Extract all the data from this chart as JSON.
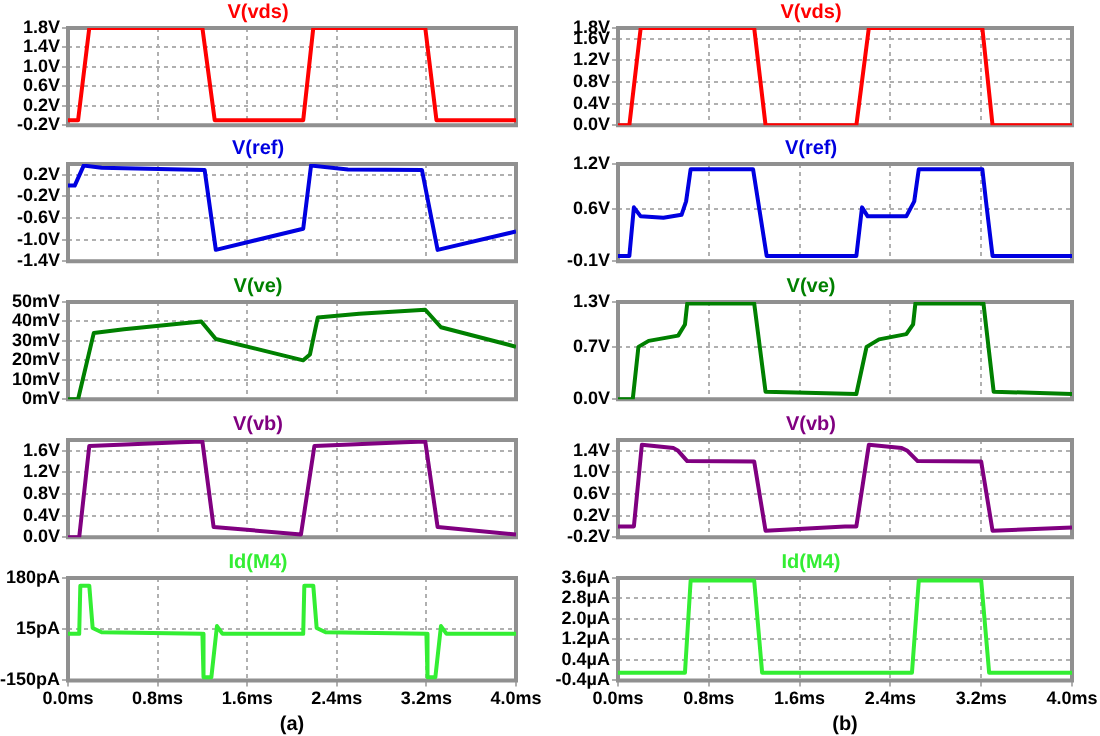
{
  "chart_data": [
    {
      "type": "line",
      "title": "V(vds)",
      "tick_labels": "y",
      "grid": true,
      "marker": "none",
      "line_style": "solid",
      "xlim": [
        0,
        4
      ],
      "xticks": [
        0,
        0.8,
        1.6,
        2.4,
        3.2,
        4
      ],
      "ylim": [
        -0.2,
        1.8
      ],
      "yticks": [
        {
          "value": -0.2,
          "label": "-0.2V"
        },
        {
          "value": 0.2,
          "label": "0.2V"
        },
        {
          "value": 0.6,
          "label": "0.6V"
        },
        {
          "value": 1.0,
          "label": "1.0V"
        },
        {
          "value": 1.4,
          "label": "1.4V"
        },
        {
          "value": 1.8,
          "label": "1.8V"
        }
      ],
      "x": [
        0,
        0.09,
        0.19,
        1.2,
        1.31,
        2.1,
        2.19,
        3.19,
        3.29,
        4
      ],
      "series": [
        {
          "color": "#ff0000",
          "values": [
            -0.1,
            -0.1,
            1.8,
            1.8,
            -0.1,
            -0.1,
            1.8,
            1.8,
            -0.1,
            -0.1
          ]
        }
      ]
    },
    {
      "type": "line",
      "title": "V(vds)",
      "tick_labels": "y",
      "grid": true,
      "marker": "none",
      "line_style": "solid",
      "xlim": [
        0,
        4
      ],
      "xticks": [
        0,
        0.8,
        1.6,
        2.4,
        3.2,
        4
      ],
      "ylim": [
        0,
        1.8
      ],
      "yticks": [
        {
          "value": 0,
          "label": "0.0V"
        },
        {
          "value": 0.4,
          "label": "0.4V"
        },
        {
          "value": 0.8,
          "label": "0.8V"
        },
        {
          "value": 1.2,
          "label": "1.2V"
        },
        {
          "value": 1.6,
          "label": "1.6V"
        },
        {
          "value": 1.8,
          "label": "1.8V"
        }
      ],
      "x": [
        0,
        0.1,
        0.2,
        1.2,
        1.3,
        2.1,
        2.21,
        3.21,
        3.3,
        4
      ],
      "series": [
        {
          "color": "#ff0000",
          "values": [
            0,
            0,
            1.8,
            1.8,
            0,
            0,
            1.8,
            1.8,
            0,
            0
          ]
        }
      ]
    },
    {
      "type": "line",
      "title": "V(ref)",
      "tick_labels": "y",
      "grid": true,
      "marker": "none",
      "line_style": "solid",
      "xlim": [
        0,
        4
      ],
      "xticks": [
        0,
        0.8,
        1.6,
        2.4,
        3.2,
        4
      ],
      "ylim": [
        -1.4,
        0.4
      ],
      "yticks": [
        {
          "value": -1.4,
          "label": "-1.4V"
        },
        {
          "value": -1.0,
          "label": "-1.0V"
        },
        {
          "value": -0.6,
          "label": "-0.6V"
        },
        {
          "value": -0.2,
          "label": "-0.2V"
        },
        {
          "value": 0.2,
          "label": "0.2V"
        }
      ],
      "x": [
        0,
        0.06,
        0.14,
        0.3,
        1.22,
        1.32,
        2.1,
        2.17,
        2.5,
        3.16,
        3.3,
        4
      ],
      "series": [
        {
          "color": "#0000e0",
          "values": [
            0,
            0,
            0.37,
            0.33,
            0.29,
            -1.19,
            -0.8,
            0.37,
            0.3,
            0.29,
            -1.19,
            -0.85
          ]
        }
      ]
    },
    {
      "type": "line",
      "title": "V(ref)",
      "tick_labels": "y",
      "grid": true,
      "marker": "none",
      "line_style": "solid",
      "xlim": [
        0,
        4
      ],
      "xticks": [
        0,
        0.8,
        1.6,
        2.4,
        3.2,
        4
      ],
      "ylim": [
        -0.1,
        1.2
      ],
      "yticks": [
        {
          "value": -0.1,
          "label": "-0.1V"
        },
        {
          "value": 0.6,
          "label": "0.6V"
        },
        {
          "value": 1.2,
          "label": "1.2V"
        }
      ],
      "x": [
        0,
        0.1,
        0.14,
        0.2,
        0.4,
        0.56,
        0.6,
        0.64,
        1.19,
        1.31,
        2.1,
        2.15,
        2.2,
        2.54,
        2.61,
        2.65,
        3.21,
        3.25,
        3.3,
        4
      ],
      "series": [
        {
          "color": "#0000e0",
          "values": [
            -0.03,
            -0.03,
            0.62,
            0.5,
            0.48,
            0.52,
            0.7,
            1.13,
            1.13,
            -0.03,
            -0.03,
            0.62,
            0.5,
            0.5,
            0.7,
            1.13,
            1.13,
            0.6,
            -0.03,
            -0.03
          ]
        }
      ]
    },
    {
      "type": "line",
      "title": "V(ve)",
      "tick_labels": "y",
      "grid": true,
      "marker": "none",
      "line_style": "solid",
      "xlim": [
        0,
        4
      ],
      "xticks": [
        0,
        0.8,
        1.6,
        2.4,
        3.2,
        4
      ],
      "ylim": [
        0,
        50
      ],
      "yticks": [
        {
          "value": 0,
          "label": "0mV"
        },
        {
          "value": 10,
          "label": "10mV"
        },
        {
          "value": 20,
          "label": "20mV"
        },
        {
          "value": 30,
          "label": "30mV"
        },
        {
          "value": 40,
          "label": "40mV"
        },
        {
          "value": 50,
          "label": "50mV"
        }
      ],
      "x": [
        0,
        0.09,
        0.23,
        0.5,
        1.19,
        1.32,
        2.1,
        2.16,
        2.23,
        2.6,
        3.19,
        3.33,
        4
      ],
      "series": [
        {
          "color": "#008000",
          "values": [
            0,
            0,
            34,
            36,
            40,
            31,
            20,
            23,
            42,
            44,
            46,
            37,
            27
          ]
        }
      ]
    },
    {
      "type": "line",
      "title": "V(ve)",
      "tick_labels": "y",
      "grid": true,
      "marker": "none",
      "line_style": "solid",
      "xlim": [
        0,
        4
      ],
      "xticks": [
        0,
        0.8,
        1.6,
        2.4,
        3.2,
        4
      ],
      "ylim": [
        0,
        1.3
      ],
      "yticks": [
        {
          "value": 0,
          "label": "0.0V"
        },
        {
          "value": 0.7,
          "label": "0.7V"
        },
        {
          "value": 1.3,
          "label": "1.3V"
        }
      ],
      "x": [
        0,
        0.13,
        0.18,
        0.27,
        0.53,
        0.59,
        0.61,
        1.2,
        1.3,
        2.1,
        2.19,
        2.3,
        2.54,
        2.6,
        2.62,
        3.22,
        3.31,
        4
      ],
      "series": [
        {
          "color": "#008000",
          "values": [
            0,
            0,
            0.7,
            0.78,
            0.85,
            1.0,
            1.28,
            1.28,
            0.1,
            0.07,
            0.7,
            0.8,
            0.87,
            1.0,
            1.28,
            1.28,
            0.1,
            0.07
          ]
        }
      ]
    },
    {
      "type": "line",
      "title": "V(vb)",
      "tick_labels": "y",
      "grid": true,
      "marker": "none",
      "line_style": "solid",
      "xlim": [
        0,
        4
      ],
      "xticks": [
        0,
        0.8,
        1.6,
        2.4,
        3.2,
        4
      ],
      "ylim": [
        0,
        1.8
      ],
      "yticks": [
        {
          "value": 0,
          "label": "0.0V"
        },
        {
          "value": 0.4,
          "label": "0.4V"
        },
        {
          "value": 0.8,
          "label": "0.8V"
        },
        {
          "value": 1.2,
          "label": "1.2V"
        },
        {
          "value": 1.6,
          "label": "1.6V"
        }
      ],
      "x": [
        0,
        0.1,
        0.19,
        1.0,
        1.2,
        1.3,
        2.08,
        2.2,
        3.0,
        3.19,
        3.3,
        4
      ],
      "series": [
        {
          "color": "#800080",
          "values": [
            0,
            0,
            1.69,
            1.76,
            1.77,
            0.19,
            0.05,
            1.69,
            1.76,
            1.77,
            0.19,
            0.05
          ]
        }
      ]
    },
    {
      "type": "line",
      "title": "V(vb)",
      "tick_labels": "y",
      "grid": true,
      "marker": "none",
      "line_style": "solid",
      "xlim": [
        0,
        4
      ],
      "xticks": [
        0,
        0.8,
        1.6,
        2.4,
        3.2,
        4
      ],
      "ylim": [
        -0.2,
        1.6
      ],
      "yticks": [
        {
          "value": -0.2,
          "label": "-0.2V"
        },
        {
          "value": 0.2,
          "label": "0.2V"
        },
        {
          "value": 0.6,
          "label": "0.6V"
        },
        {
          "value": 1.0,
          "label": "1.0V"
        },
        {
          "value": 1.4,
          "label": "1.4V"
        }
      ],
      "x": [
        0,
        0.14,
        0.21,
        0.49,
        0.53,
        0.61,
        1.2,
        1.3,
        2.0,
        2.1,
        2.21,
        2.5,
        2.55,
        2.64,
        3.2,
        3.3,
        4
      ],
      "series": [
        {
          "color": "#800080",
          "values": [
            0,
            0,
            1.51,
            1.45,
            1.4,
            1.21,
            1.2,
            -0.08,
            0,
            0,
            1.51,
            1.45,
            1.4,
            1.21,
            1.2,
            -0.08,
            -0.02
          ]
        }
      ]
    },
    {
      "type": "line",
      "title": "Id(M4)",
      "grid": true,
      "marker": "none",
      "line_style": "solid",
      "annotations": [
        "(a)"
      ],
      "xlim": [
        0,
        4
      ],
      "xticks": [
        {
          "value": 0,
          "label": "0.0ms"
        },
        {
          "value": 0.8,
          "label": "0.8ms"
        },
        {
          "value": 1.6,
          "label": "1.6ms"
        },
        {
          "value": 2.4,
          "label": "2.4ms"
        },
        {
          "value": 3.2,
          "label": "3.2ms"
        },
        {
          "value": 4,
          "label": "4.0ms"
        }
      ],
      "ylim": [
        -150,
        180
      ],
      "yticks": [
        {
          "value": -150,
          "label": "-150pA"
        },
        {
          "value": 15,
          "label": "15pA"
        },
        {
          "value": 180,
          "label": "180pA"
        }
      ],
      "x": [
        0,
        0.1,
        0.11,
        0.19,
        0.22,
        0.3,
        1.2,
        1.21,
        1.28,
        1.33,
        1.38,
        2.1,
        2.11,
        2.19,
        2.22,
        2.3,
        3.2,
        3.21,
        3.28,
        3.33,
        3.38,
        4
      ],
      "series": [
        {
          "color": "#33ee33",
          "values": [
            0,
            0,
            155,
            155,
            19,
            5,
            0,
            -140,
            -140,
            25,
            0,
            0,
            155,
            155,
            19,
            5,
            0,
            -140,
            -140,
            25,
            0,
            0
          ]
        }
      ]
    },
    {
      "type": "line",
      "title": "Id(M4)",
      "grid": true,
      "marker": "none",
      "line_style": "solid",
      "annotations": [
        "(b)"
      ],
      "xlim": [
        0,
        4
      ],
      "xticks": [
        {
          "value": 0,
          "label": "0.0ms"
        },
        {
          "value": 0.8,
          "label": "0.8ms"
        },
        {
          "value": 1.6,
          "label": "1.6ms"
        },
        {
          "value": 2.4,
          "label": "2.4ms"
        },
        {
          "value": 3.2,
          "label": "3.2ms"
        },
        {
          "value": 4,
          "label": "4.0ms"
        }
      ],
      "ylim": [
        -0.4,
        3.6
      ],
      "yticks": [
        {
          "value": -0.4,
          "label": "-0.4µA"
        },
        {
          "value": 0.4,
          "label": "0.4µA"
        },
        {
          "value": 1.2,
          "label": "1.2µA"
        },
        {
          "value": 2.0,
          "label": "2.0µA"
        },
        {
          "value": 2.8,
          "label": "2.8µA"
        },
        {
          "value": 3.6,
          "label": "3.6µA"
        }
      ],
      "x": [
        0,
        0.59,
        0.64,
        1.2,
        1.27,
        2.59,
        2.65,
        3.2,
        3.27,
        4
      ],
      "series": [
        {
          "color": "#33ee33",
          "values": [
            -0.1,
            -0.1,
            3.5,
            3.5,
            -0.1,
            -0.1,
            3.5,
            3.5,
            -0.1,
            -0.1
          ]
        }
      ]
    }
  ]
}
